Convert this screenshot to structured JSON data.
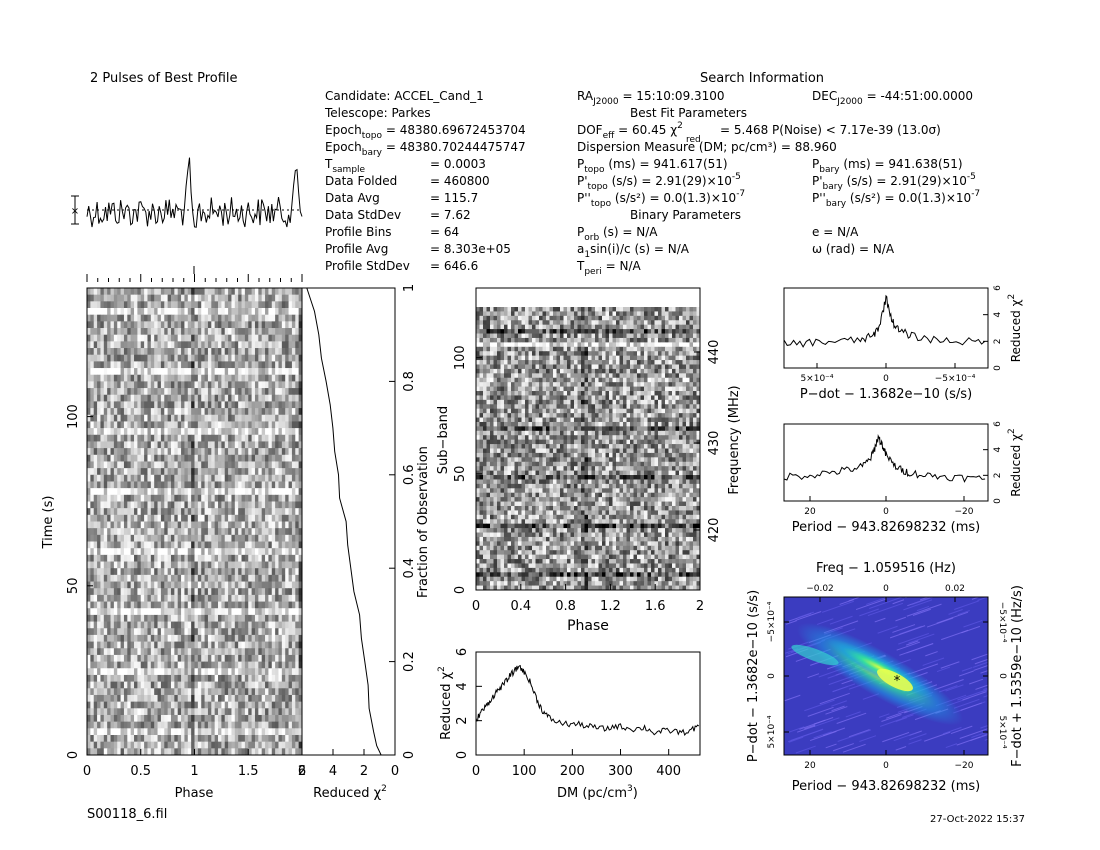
{
  "title": "2 Pulses of Best Profile",
  "file_name": "S00118_6.fil",
  "timestamp": "27-Oct-2022 15:37",
  "info": {
    "header": "Search Information",
    "col1": [
      {
        "label": "Candidate:  ACCEL_Cand_1"
      },
      {
        "label": "Telescope:  Parkes"
      },
      {
        "label": "Epoch",
        "sub": "topo",
        "rest": " = 48380.69672453704"
      },
      {
        "label": "Epoch",
        "sub": "bary",
        "rest": " = 48380.70244475747"
      },
      {
        "label": "T",
        "sub": "sample",
        "rest": "",
        "value": "=   0.0003"
      },
      {
        "label": "Data Folded",
        "value": "=   460800"
      },
      {
        "label": "Data Avg",
        "value": "=   115.7"
      },
      {
        "label": "Data StdDev",
        "value": "=   7.62"
      },
      {
        "label": "Profile Bins",
        "value": "=   64"
      },
      {
        "label": "Profile Avg",
        "value": "=   8.303e+05"
      },
      {
        "label": "Profile StdDev",
        "value": "=   646.6"
      }
    ],
    "ra": {
      "label": "RA",
      "sub": "J2000",
      "rest": " = 15:10:09.3100"
    },
    "dec": {
      "label": "DEC",
      "sub": "J2000",
      "rest": " = -44:51:00.0000"
    },
    "best_fit_header": "Best Fit Parameters",
    "dof": {
      "a": "DOF",
      "a_sub": "eff",
      "b": " = 60.45   χ",
      "b_sup": "2",
      "b_sub": "red",
      "c": " = 5.468   P(Noise) < 7.17e-39   (13.0σ)"
    },
    "dm_line": "Dispersion Measure (DM; pc/cm³) = 88.960",
    "p_topo": {
      "l": "P",
      "sub": "topo",
      "r": " (ms) =  941.617(51)"
    },
    "p_bary": {
      "l": "P",
      "sub": "bary",
      "r": " (ms) =  941.638(51)"
    },
    "pd_topo": {
      "l": "P'",
      "sub": "topo",
      "r": " (s/s) =  2.91(29)×10",
      "sup": "-5"
    },
    "pd_bary": {
      "l": "P'",
      "sub": "bary",
      "r": " (s/s) =  2.91(29)×10",
      "sup": "-5"
    },
    "pdd_topo": {
      "l": "P''",
      "sub": "topo",
      "r": " (s/s²) = 0.0(1.3)×10",
      "sup": "-7"
    },
    "pdd_bary": {
      "l": "P''",
      "sub": "bary",
      "r": " (s/s²) = 0.0(1.3)×10",
      "sup": "-7"
    },
    "binary_header": "Binary Parameters",
    "p_orb": {
      "l": "P",
      "sub": "orb",
      "r": " (s) = N/A"
    },
    "e_line": "e = N/A",
    "asini": {
      "l": "a",
      "sub": "1",
      "r": "sin(i)/c (s) = N/A"
    },
    "omega_line": "ω (rad) = N/A",
    "t_peri": {
      "l": "T",
      "sub": "peri",
      "r": " = N/A"
    }
  },
  "labels": {
    "time_axis": "Time (s)",
    "phase": "Phase",
    "red_chi2": "Reduced χ",
    "red_chi2_sup": "2",
    "fraction_obs": "Fraction of Observation",
    "subband": "Sub−band",
    "frequency": "Frequency (MHz)",
    "dm_axis": "DM (pc/cm",
    "dm_axis_sup": "3",
    "dm_axis_end": ")",
    "pdot_xlabel": "P−dot − 1.3682e−10 (s/s)",
    "period_xlabel": "Period − 943.82698232 (ms)",
    "freq_top": "Freq − 1.059516 (Hz)",
    "pdot_ylabel": "P−dot − 1.3682e−10 (s/s)",
    "fdot_ylabel": "F−dot + 1.5359e−10 (Hz/s)"
  },
  "chart_data": [
    {
      "type": "line",
      "id": "profile",
      "title": "2 Pulses of Best Profile",
      "x_range": [
        0,
        2
      ],
      "peaks_phase": [
        0.95,
        1.95
      ],
      "baseline_level": "dotted"
    },
    {
      "type": "heatmap",
      "id": "time_phase",
      "xlabel": "Phase",
      "ylabel": "Time (s)",
      "x_ticks": [
        "0",
        "0.5",
        "1",
        "1.5",
        "2"
      ],
      "y_ticks": [
        "0",
        "50",
        "100"
      ],
      "xlim": [
        0,
        2
      ],
      "ylim": [
        0,
        138
      ],
      "colors": "greyscale"
    },
    {
      "type": "line",
      "id": "time_chi2",
      "xlabel": "Reduced χ²",
      "ylabel": "Fraction of Observation",
      "x_ticks": [
        "6",
        "4",
        "2",
        "0"
      ],
      "y_ticks": [
        "0",
        "0.2",
        "0.4",
        "0.6",
        "0.8",
        "1"
      ],
      "xlim": [
        6,
        0
      ],
      "ylim": [
        0,
        1
      ],
      "fraction": [
        0,
        0.02,
        0.05,
        0.1,
        0.15,
        0.2,
        0.25,
        0.3,
        0.35,
        0.4,
        0.45,
        0.5,
        0.55,
        0.6,
        0.65,
        0.7,
        0.75,
        0.8,
        0.85,
        0.9,
        0.95,
        1.0
      ],
      "chi2": [
        0.9,
        1.2,
        1.4,
        1.6,
        1.8,
        1.9,
        2.2,
        2.4,
        2.6,
        2.8,
        3.0,
        3.2,
        3.5,
        3.6,
        3.8,
        4.0,
        4.3,
        4.5,
        4.7,
        5.0,
        5.3,
        5.6
      ]
    },
    {
      "type": "heatmap",
      "id": "subband_phase",
      "xlabel": "Phase",
      "ylabel": "Sub−band",
      "y2label": "Frequency (MHz)",
      "x_ticks": [
        "0",
        "0.4",
        "0.8",
        "1.2",
        "1.6",
        "2"
      ],
      "y_ticks": [
        "0",
        "50",
        "100"
      ],
      "y2_ticks": [
        "420",
        "430",
        "440"
      ],
      "xlim": [
        0,
        2
      ],
      "ylim": [
        0,
        128
      ],
      "colors": "greyscale"
    },
    {
      "type": "line",
      "id": "dm_curve",
      "xlabel": "DM (pc/cm³)",
      "ylabel": "Reduced χ²",
      "x_ticks": [
        "0",
        "100",
        "200",
        "300",
        "400"
      ],
      "y_ticks": [
        "0",
        "2",
        "4",
        "6"
      ],
      "xlim": [
        0,
        465
      ],
      "ylim": [
        0,
        6
      ],
      "x": [
        0,
        10,
        20,
        30,
        40,
        50,
        60,
        70,
        80,
        90,
        100,
        110,
        120,
        130,
        140,
        150,
        170,
        190,
        210,
        230,
        250,
        270,
        290,
        310,
        330,
        350,
        370,
        390,
        410,
        430,
        450,
        465
      ],
      "y": [
        2.0,
        2.5,
        2.8,
        3.2,
        3.6,
        3.9,
        4.2,
        4.6,
        4.9,
        5.2,
        4.8,
        4.4,
        3.7,
        3.0,
        2.5,
        2.2,
        1.9,
        1.8,
        1.8,
        1.7,
        1.6,
        1.5,
        1.7,
        1.6,
        1.5,
        1.6,
        1.3,
        1.4,
        1.4,
        1.3,
        1.5,
        1.7
      ]
    },
    {
      "type": "line",
      "id": "pdot_curve",
      "xlabel": "P−dot − 1.3682e−10 (s/s)",
      "ylabel": "Reduced χ²",
      "x_ticks": [
        "5×10⁻⁴",
        "0",
        "−5×10⁻⁴"
      ],
      "y_ticks": [
        "0",
        "2",
        "4",
        "6"
      ],
      "xlim": [
        0.0008,
        -0.0008
      ],
      "ylim": [
        0,
        6
      ],
      "x": [
        0.0008,
        0.0006,
        0.0004,
        0.0002,
        0.0001,
        5e-05,
        0.0,
        -5e-05,
        -0.0001,
        -0.0002,
        -0.0004,
        -0.0006,
        -0.0008
      ],
      "y": [
        1.8,
        1.9,
        2.0,
        2.1,
        2.4,
        3.2,
        5.3,
        3.5,
        2.8,
        2.4,
        2.1,
        2.0,
        1.9
      ]
    },
    {
      "type": "line",
      "id": "period_curve",
      "xlabel": "Period − 943.82698232 (ms)",
      "ylabel": "Reduced χ²",
      "x_ticks": [
        "20",
        "0",
        "−20"
      ],
      "y_ticks": [
        "0",
        "2",
        "4",
        "6"
      ],
      "xlim": [
        26,
        -26
      ],
      "ylim": [
        0,
        6
      ],
      "x": [
        26,
        20,
        15,
        10,
        6,
        4,
        3,
        2,
        1,
        0,
        -2,
        -4,
        -6,
        -10,
        -15,
        -20,
        -26
      ],
      "y": [
        1.9,
        2.0,
        2.2,
        2.4,
        2.7,
        3.3,
        4.0,
        5.0,
        4.4,
        3.6,
        2.8,
        2.4,
        2.2,
        2.0,
        1.9,
        1.8,
        1.7
      ]
    },
    {
      "type": "heatmap",
      "id": "pdot_period",
      "xlabel": "Period − 943.82698232 (ms)",
      "ylabel": "P−dot − 1.3682e−10 (s/s)",
      "top_label": "Freq − 1.059516 (Hz)",
      "right_label": "F−dot + 1.5359e−10 (Hz/s)",
      "x_ticks": [
        "20",
        "0",
        "−20"
      ],
      "top_ticks": [
        "−0.02",
        "0",
        "0.02"
      ],
      "y_ticks": [
        "5×10⁻⁴",
        "0",
        "−5×10⁻⁴"
      ],
      "right_ticks": [
        "5×10⁻⁴",
        "0",
        "−5×10⁻⁴"
      ],
      "best_fit_marker": "*",
      "colors": "viridis-like blue/cyan"
    }
  ]
}
